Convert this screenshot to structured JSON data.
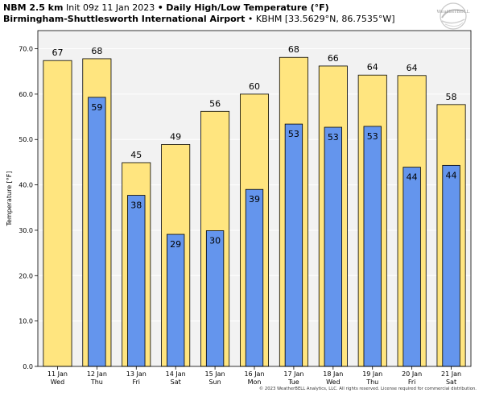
{
  "header": {
    "model": "NBM 2.5 km",
    "init": "Init 09z 11 Jan 2023",
    "bullet": "•",
    "title": "Daily High/Low Temperature (°F)",
    "location": "Birmingham-Shuttlesworth International Airport",
    "station": "• KBHM [33.5629°N, 86.7535°W]"
  },
  "logo": {
    "text": "WeatherBELL"
  },
  "copyright": "© 2023 WeatherBELL Analytics, LLC. All rights reserved. License required for commercial distribution.",
  "colors": {
    "high": "#ffe57f",
    "low": "#6495ed",
    "plot_bg": "#f2f2f2",
    "edge": "#000000"
  },
  "chart_data": {
    "type": "bar",
    "title": "Daily High/Low Temperature (°F)",
    "ylabel": "Temperature [°F]",
    "ylim": [
      0,
      74
    ],
    "yticks": [
      "0.0",
      "10.0",
      "20.0",
      "30.0",
      "40.0",
      "50.0",
      "60.0",
      "70.0"
    ],
    "categories": [
      {
        "date": "11 Jan",
        "day": "Wed"
      },
      {
        "date": "12 Jan",
        "day": "Thu"
      },
      {
        "date": "13 Jan",
        "day": "Fri"
      },
      {
        "date": "14 Jan",
        "day": "Sat"
      },
      {
        "date": "15 Jan",
        "day": "Sun"
      },
      {
        "date": "16 Jan",
        "day": "Mon"
      },
      {
        "date": "17 Jan",
        "day": "Tue"
      },
      {
        "date": "18 Jan",
        "day": "Wed"
      },
      {
        "date": "19 Jan",
        "day": "Thu"
      },
      {
        "date": "20 Jan",
        "day": "Fri"
      },
      {
        "date": "21 Jan",
        "day": "Sat"
      }
    ],
    "series": [
      {
        "values": [
          67.4,
          67.8,
          44.9,
          48.9,
          56.2,
          60.0,
          68.1,
          66.2,
          64.2,
          64.1,
          57.7
        ],
        "labels": [
          "67",
          "68",
          "45",
          "49",
          "56",
          "60",
          "68",
          "66",
          "64",
          "64",
          "58"
        ]
      },
      {
        "values": [
          null,
          59.3,
          37.7,
          29.1,
          29.9,
          39.0,
          53.4,
          52.7,
          52.9,
          43.9,
          44.3
        ],
        "labels": [
          "",
          "59",
          "38",
          "29",
          "30",
          "39",
          "53",
          "53",
          "53",
          "44",
          "44"
        ]
      }
    ]
  }
}
